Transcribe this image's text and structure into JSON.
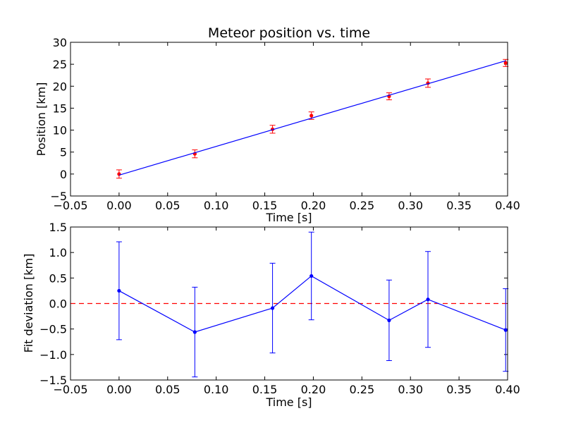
{
  "chart_data": [
    {
      "type": "scatter",
      "title": "Meteor position vs. time",
      "xlabel": "Time [s]",
      "ylabel": "Position [km]",
      "xlim": [
        -0.05,
        0.4
      ],
      "ylim": [
        -5,
        30
      ],
      "xticks": [
        "−0.05",
        "0.00",
        "0.05",
        "0.10",
        "0.15",
        "0.20",
        "0.25",
        "0.30",
        "0.35",
        "0.40"
      ],
      "yticks": [
        "−5",
        "0",
        "5",
        "10",
        "15",
        "20",
        "25",
        "30"
      ],
      "grid": false,
      "series": [
        {
          "kind": "points-with-errorbars",
          "color": "#ff0000",
          "x": [
            0.0,
            0.078,
            0.158,
            0.198,
            0.278,
            0.318,
            0.398
          ],
          "y": [
            0.0,
            4.6,
            10.2,
            13.3,
            17.7,
            20.7,
            25.3
          ],
          "yerr": [
            0.95,
            0.9,
            0.9,
            0.85,
            0.8,
            0.95,
            0.8
          ]
        },
        {
          "kind": "fit-line",
          "color": "#0000ff",
          "x": [
            0.0,
            0.398
          ],
          "y": [
            -0.25,
            25.8
          ]
        }
      ]
    },
    {
      "type": "line",
      "xlabel": "Time [s]",
      "ylabel": "Fit deviation [km]",
      "xlim": [
        -0.05,
        0.4
      ],
      "ylim": [
        -1.5,
        1.5
      ],
      "xticks": [
        "−0.05",
        "0.00",
        "0.05",
        "0.10",
        "0.15",
        "0.20",
        "0.25",
        "0.30",
        "0.35",
        "0.40"
      ],
      "yticks": [
        "−1.5",
        "−1.0",
        "−0.5",
        "0.0",
        "0.5",
        "1.0",
        "1.5"
      ],
      "grid": false,
      "reference_line": {
        "y": 0.0,
        "color": "#ff0000",
        "style": "dashed"
      },
      "series": [
        {
          "color": "#0000ff",
          "x": [
            0.0,
            0.078,
            0.158,
            0.198,
            0.278,
            0.318,
            0.398
          ],
          "y": [
            0.25,
            -0.56,
            -0.09,
            0.54,
            -0.33,
            0.08,
            -0.52
          ],
          "yerr": [
            0.96,
            0.88,
            0.88,
            0.86,
            0.79,
            0.94,
            0.81
          ]
        }
      ]
    }
  ]
}
